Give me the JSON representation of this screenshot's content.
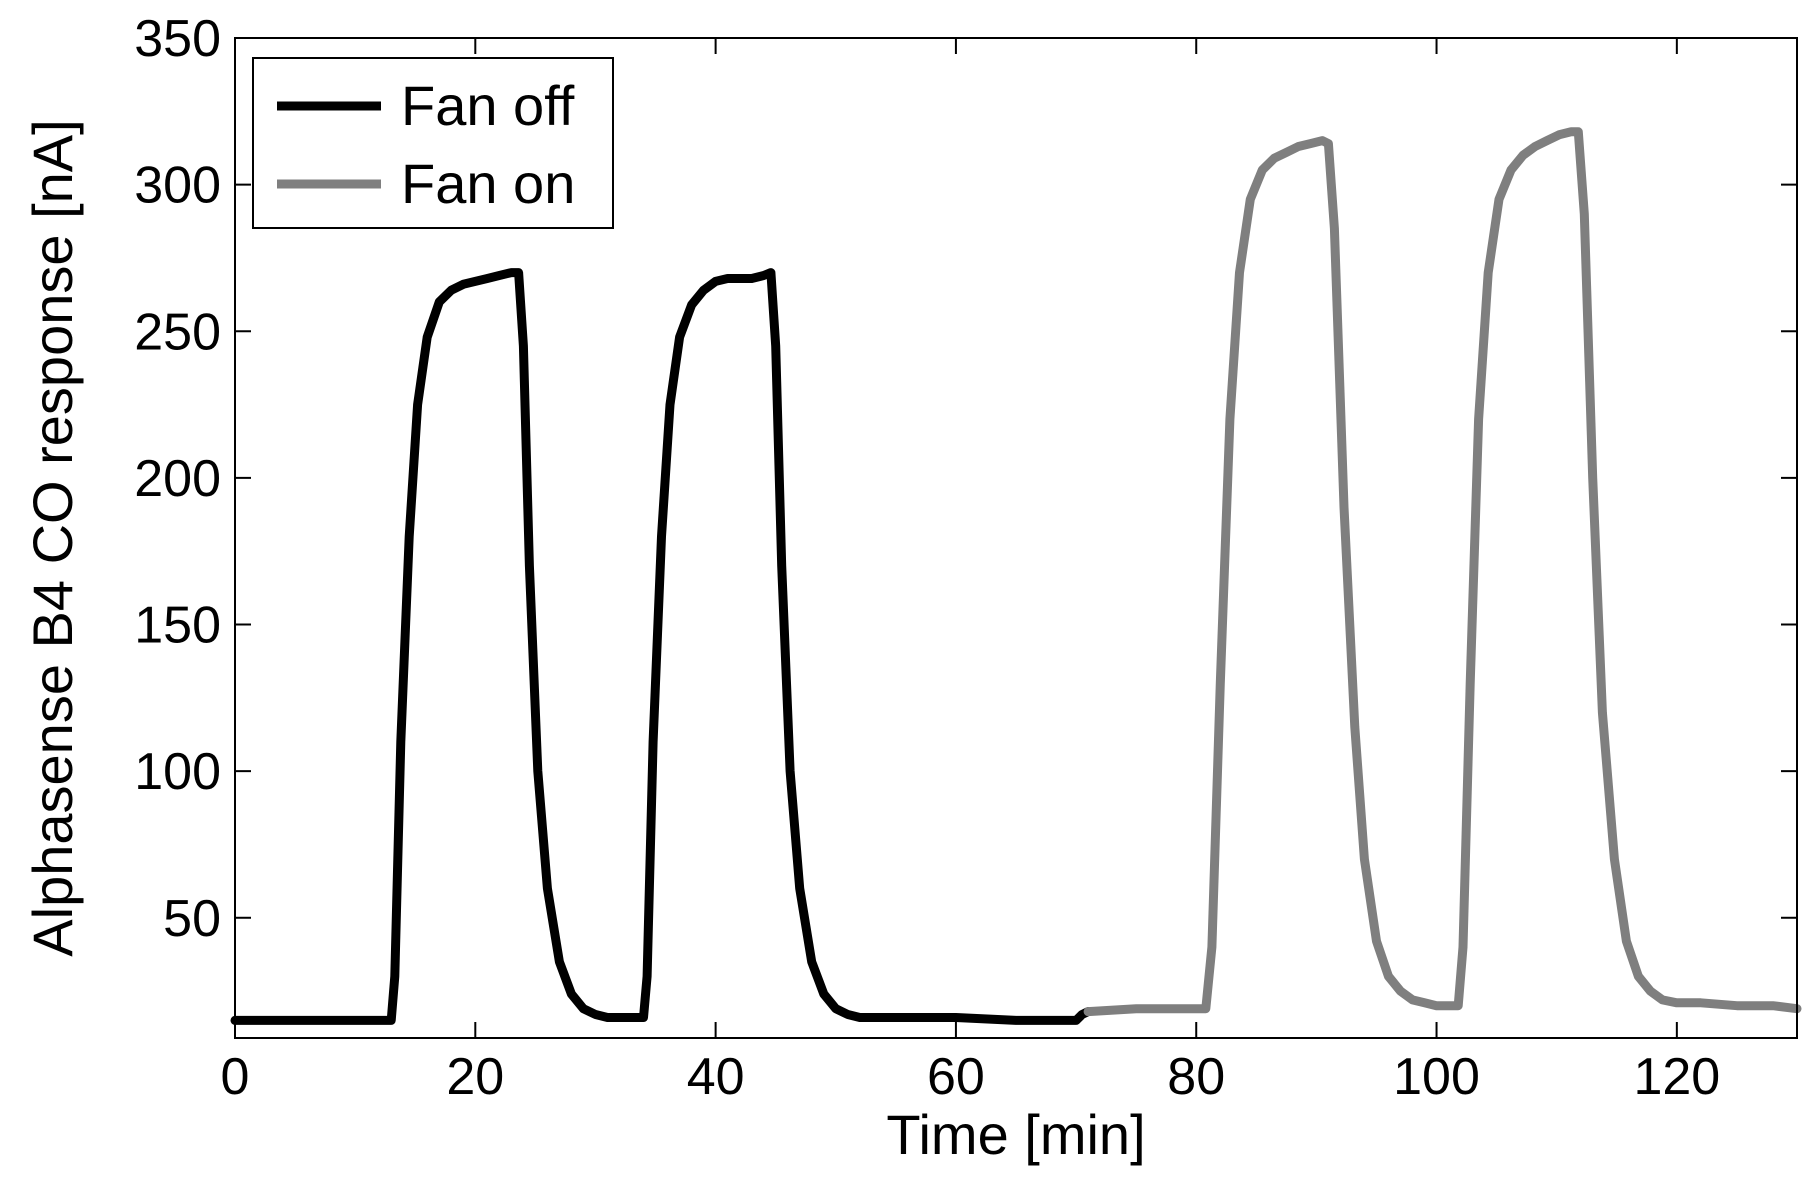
{
  "chart_data": {
    "type": "line",
    "title": "",
    "xlabel": "Time [min]",
    "ylabel": "Alphasense B4 CO response [nA]",
    "xlim": [
      0,
      130
    ],
    "ylim": [
      9,
      350
    ],
    "x_ticks": [
      0,
      20,
      40,
      60,
      80,
      100,
      120
    ],
    "y_ticks": [
      50,
      100,
      150,
      200,
      250,
      300,
      350
    ],
    "grid": false,
    "legend_position": "top-left",
    "series": [
      {
        "name": "Fan off",
        "color": "#000000",
        "x": [
          0,
          5,
          10,
          13,
          13.3,
          13.8,
          14.5,
          15.2,
          16,
          17,
          18,
          19,
          20,
          21,
          22,
          23,
          23.6,
          24,
          24.5,
          25.2,
          26,
          27,
          28,
          29,
          30,
          31,
          32,
          33,
          34,
          34.3,
          34.8,
          35.5,
          36.2,
          37,
          38,
          39,
          40,
          41,
          42,
          43,
          44,
          44.6,
          45,
          45.5,
          46.2,
          47,
          48,
          49,
          50,
          51,
          52,
          55,
          60,
          65,
          70,
          70.5,
          71
        ],
        "y": [
          15,
          15,
          15,
          15,
          30,
          110,
          180,
          225,
          248,
          260,
          264,
          266,
          267,
          268,
          269,
          270,
          270,
          245,
          170,
          100,
          60,
          35,
          24,
          19,
          17,
          16,
          16,
          16,
          16,
          30,
          110,
          180,
          225,
          248,
          259,
          264,
          267,
          268,
          268,
          268,
          269,
          270,
          245,
          170,
          100,
          60,
          35,
          24,
          19,
          17,
          16,
          16,
          16,
          15,
          15,
          17,
          18
        ]
      },
      {
        "name": "Fan on",
        "color": "#7f7f7f",
        "x": [
          71,
          75,
          80,
          80.8,
          81.3,
          82,
          82.8,
          83.6,
          84.5,
          85.5,
          86.5,
          87.5,
          88.5,
          89.5,
          90.5,
          91,
          91.5,
          92.3,
          93.2,
          94,
          95,
          96,
          97,
          98,
          99,
          100,
          101,
          101.8,
          102.2,
          102.8,
          103.5,
          104.3,
          105.2,
          106.2,
          107.2,
          108.2,
          109.2,
          110.2,
          111.2,
          111.8,
          112.3,
          113,
          113.8,
          114.8,
          115.8,
          116.8,
          117.8,
          118.8,
          120,
          122,
          125,
          128,
          130
        ],
        "y": [
          18,
          19,
          19,
          19,
          40,
          130,
          220,
          270,
          295,
          305,
          309,
          311,
          313,
          314,
          315,
          314,
          285,
          190,
          115,
          70,
          42,
          30,
          25,
          22,
          21,
          20,
          20,
          20,
          40,
          130,
          220,
          270,
          295,
          305,
          310,
          313,
          315,
          317,
          318,
          318,
          290,
          200,
          120,
          70,
          42,
          30,
          25,
          22,
          21,
          21,
          20,
          20,
          19
        ]
      }
    ]
  }
}
